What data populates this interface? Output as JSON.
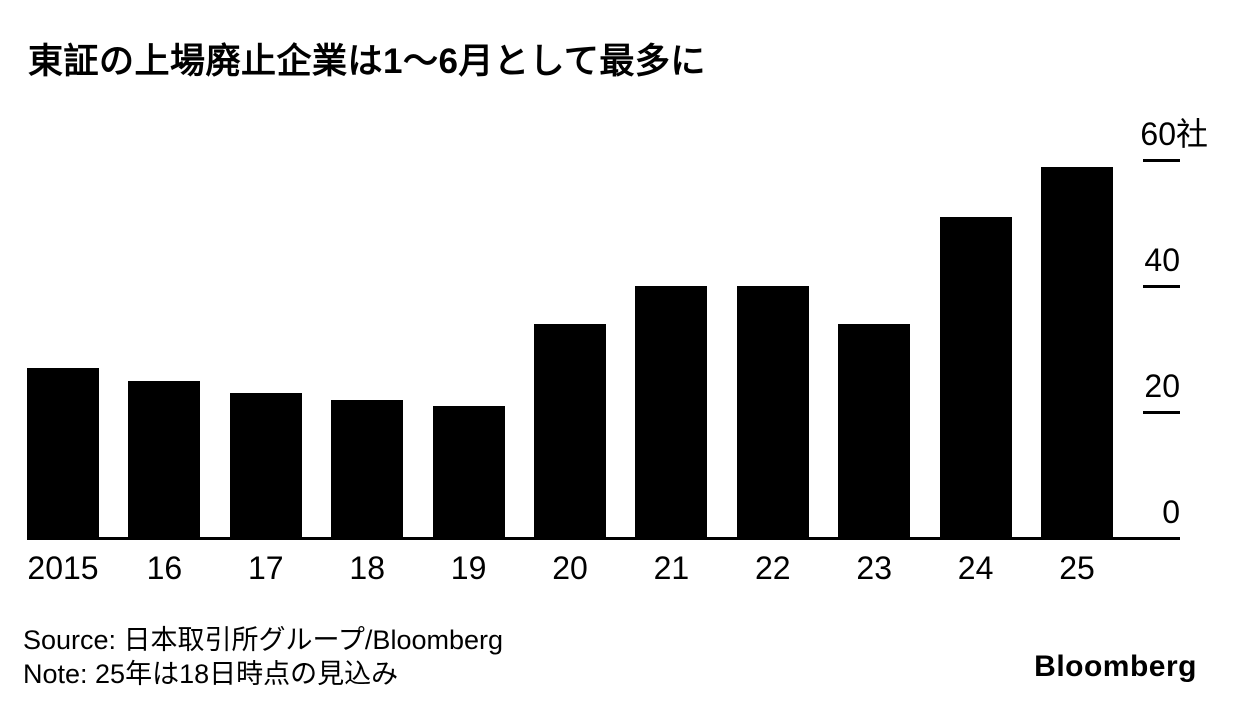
{
  "title": "東証の上場廃止企業は1〜6月として最多に",
  "chart_data": {
    "type": "bar",
    "categories": [
      "2015",
      "16",
      "17",
      "18",
      "19",
      "20",
      "21",
      "22",
      "23",
      "24",
      "25"
    ],
    "values": [
      27,
      25,
      23,
      22,
      21,
      34,
      40,
      40,
      34,
      51,
      59
    ],
    "title": "東証の上場廃止企業は1〜6月として最多に",
    "xlabel": "",
    "ylabel": "社",
    "ylim": [
      0,
      60
    ],
    "yticks": [
      0,
      20,
      40,
      60
    ],
    "ytick_labels": [
      "0",
      "20",
      "40",
      "60社"
    ],
    "grid": false,
    "legend": null,
    "bar_color": "#000000",
    "axis_side": "right"
  },
  "footer": {
    "source": "Source: 日本取引所グループ/Bloomberg",
    "note": "Note: 25年は18日時点の見込み"
  },
  "branding": {
    "logo": "Bloomberg"
  },
  "colors": {
    "background": "#ffffff",
    "bar": "#000000",
    "text": "#000000"
  }
}
